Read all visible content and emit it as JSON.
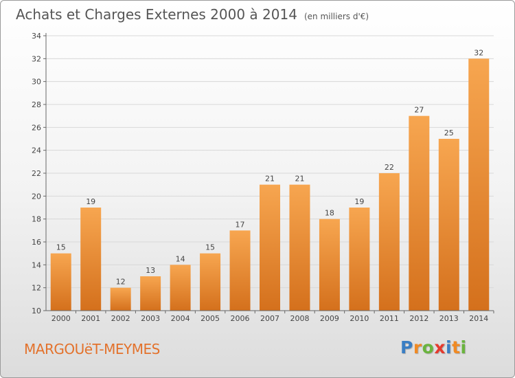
{
  "header": {
    "title": "Achats et Charges Externes 2000 à 2014",
    "subtitle": "(en milliers d'€)"
  },
  "footer": {
    "commune": "MARGOUëT-MEYMES",
    "brand": "Proxiti",
    "brand_letters": [
      {
        "char": "P",
        "color": "#3a7ec4"
      },
      {
        "char": "r",
        "color": "#f08a24"
      },
      {
        "char": "o",
        "color": "#6ab43e"
      },
      {
        "char": "x",
        "color": "#e53a2e"
      },
      {
        "char": "i",
        "color": "#3a7ec4"
      },
      {
        "char": "t",
        "color": "#f08a24"
      },
      {
        "char": "i",
        "color": "#6ab43e"
      }
    ]
  },
  "chart_data": {
    "type": "bar",
    "categories": [
      "2000",
      "2001",
      "2002",
      "2003",
      "2004",
      "2005",
      "2006",
      "2007",
      "2008",
      "2009",
      "2010",
      "2011",
      "2012",
      "2013",
      "2014"
    ],
    "values": [
      15,
      19,
      12,
      13,
      14,
      15,
      17,
      21,
      21,
      18,
      19,
      22,
      27,
      25,
      32
    ],
    "title": "Achats et Charges Externes 2000 à 2014",
    "subtitle": "(en milliers d'€)",
    "xlabel": "",
    "ylabel": "",
    "ylim": [
      10,
      34
    ],
    "yticks": [
      10,
      12,
      14,
      16,
      18,
      20,
      22,
      24,
      26,
      28,
      30,
      32,
      34
    ],
    "grid": true,
    "colors": {
      "bar_light": "#f7a650",
      "bar_dark": "#d4701c",
      "grid": "#d8d8d8",
      "axis": "#666666",
      "label": "#444444"
    }
  }
}
